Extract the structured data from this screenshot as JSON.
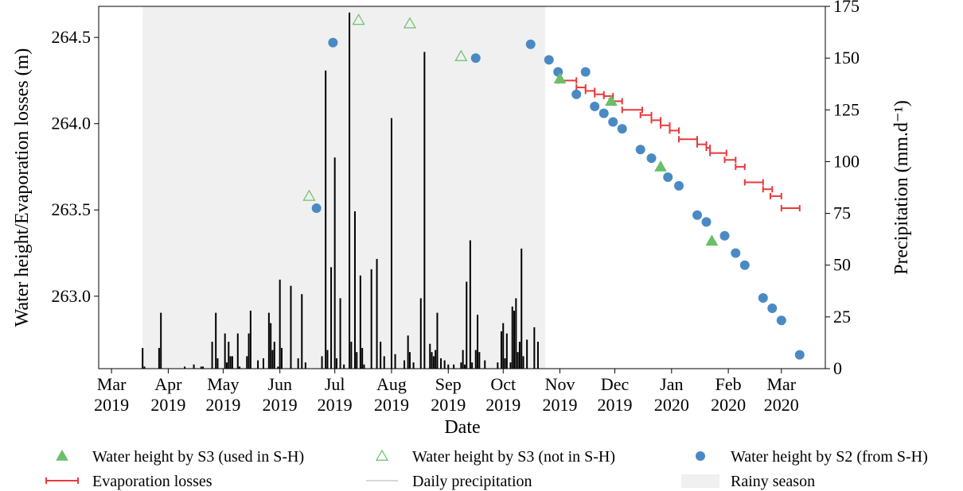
{
  "chart_data": {
    "type": "scatter",
    "xlabel": "Date",
    "ylabel_left": "Water height/Evaporation losses (m)",
    "ylabel_right": "Precipitation (mm.d⁻¹)",
    "x_range": [
      "2019-02-22",
      "2020-03-25"
    ],
    "ylim_left": [
      262.58,
      264.68
    ],
    "ylim_right": [
      0,
      175
    ],
    "grid": false,
    "legend_position": "bottom",
    "colors": {
      "s3_used": "#6abf69",
      "s3_not_used": "#6abf69",
      "s2": "#4a8ac4",
      "evaporation": "#e8393b",
      "precipitation": "#000000",
      "rainy_season": "#f0f0f0"
    },
    "x_ticks": [
      {
        "date": "2019-03-01",
        "label": "Mar\n2019"
      },
      {
        "date": "2019-04-01",
        "label": "Apr\n2019"
      },
      {
        "date": "2019-05-01",
        "label": "May\n2019"
      },
      {
        "date": "2019-06-01",
        "label": "Jun\n2019"
      },
      {
        "date": "2019-07-01",
        "label": "Jul\n2019"
      },
      {
        "date": "2019-08-01",
        "label": "Aug\n2019"
      },
      {
        "date": "2019-09-01",
        "label": "Sep\n2019"
      },
      {
        "date": "2019-10-01",
        "label": "Oct\n2019"
      },
      {
        "date": "2019-11-01",
        "label": "Nov\n2019"
      },
      {
        "date": "2019-12-01",
        "label": "Dec\n2019"
      },
      {
        "date": "2020-01-01",
        "label": "Jan\n2020"
      },
      {
        "date": "2020-02-01",
        "label": "Feb\n2020"
      },
      {
        "date": "2020-03-01",
        "label": "Mar\n2020"
      }
    ],
    "y_ticks_left": [
      {
        "value": 263.0,
        "label": "263.0"
      },
      {
        "value": 263.5,
        "label": "263.5"
      },
      {
        "value": 264.0,
        "label": "264.0"
      },
      {
        "value": 264.5,
        "label": "264.5"
      }
    ],
    "y_ticks_right": [
      {
        "value": 0,
        "label": "0"
      },
      {
        "value": 25,
        "label": "25"
      },
      {
        "value": 50,
        "label": "50"
      },
      {
        "value": 75,
        "label": "75"
      },
      {
        "value": 100,
        "label": "100"
      },
      {
        "value": 125,
        "label": "125"
      },
      {
        "value": 150,
        "label": "150"
      },
      {
        "value": 175,
        "label": "175"
      }
    ],
    "rainy_season": {
      "start": "2019-03-18",
      "end": "2019-10-24"
    },
    "series": [
      {
        "name": "Water height by S3 (used in S-H)",
        "kind": "triangle-filled",
        "points": [
          {
            "x": "2019-11-01",
            "y": 264.26
          },
          {
            "x": "2019-11-29",
            "y": 264.13
          },
          {
            "x": "2019-12-26",
            "y": 263.75
          },
          {
            "x": "2020-01-23",
            "y": 263.32
          }
        ]
      },
      {
        "name": "Water height by S3 (not in S-H)",
        "kind": "triangle-open",
        "points": [
          {
            "x": "2019-06-17",
            "y": 263.58
          },
          {
            "x": "2019-07-14",
            "y": 264.6
          },
          {
            "x": "2019-08-11",
            "y": 264.58
          },
          {
            "x": "2019-09-08",
            "y": 264.39
          }
        ]
      },
      {
        "name": "Water height by S2 (from S-H)",
        "kind": "circle",
        "points": [
          {
            "x": "2019-06-21",
            "y": 263.51
          },
          {
            "x": "2019-06-30",
            "y": 264.47
          },
          {
            "x": "2019-09-16",
            "y": 264.38
          },
          {
            "x": "2019-10-16",
            "y": 264.46
          },
          {
            "x": "2019-10-26",
            "y": 264.37
          },
          {
            "x": "2019-10-31",
            "y": 264.3
          },
          {
            "x": "2019-11-10",
            "y": 264.17
          },
          {
            "x": "2019-11-15",
            "y": 264.3
          },
          {
            "x": "2019-11-20",
            "y": 264.1
          },
          {
            "x": "2019-11-25",
            "y": 264.06
          },
          {
            "x": "2019-11-30",
            "y": 264.01
          },
          {
            "x": "2019-12-05",
            "y": 263.97
          },
          {
            "x": "2019-12-15",
            "y": 263.85
          },
          {
            "x": "2019-12-21",
            "y": 263.8
          },
          {
            "x": "2019-12-30",
            "y": 263.69
          },
          {
            "x": "2020-01-05",
            "y": 263.64
          },
          {
            "x": "2020-01-15",
            "y": 263.47
          },
          {
            "x": "2020-01-20",
            "y": 263.43
          },
          {
            "x": "2020-01-30",
            "y": 263.35
          },
          {
            "x": "2020-02-05",
            "y": 263.25
          },
          {
            "x": "2020-02-10",
            "y": 263.18
          },
          {
            "x": "2020-02-20",
            "y": 262.99
          },
          {
            "x": "2020-02-25",
            "y": 262.93
          },
          {
            "x": "2020-03-01",
            "y": 262.86
          },
          {
            "x": "2020-03-11",
            "y": 262.66
          }
        ]
      },
      {
        "name": "Evaporation losses",
        "kind": "horizontal-interval",
        "points": [
          {
            "start": "2019-10-31",
            "end": "2019-11-10",
            "y": 264.25
          },
          {
            "start": "2019-11-10",
            "end": "2019-11-15",
            "y": 264.21
          },
          {
            "start": "2019-11-15",
            "end": "2019-11-20",
            "y": 264.19
          },
          {
            "start": "2019-11-20",
            "end": "2019-11-25",
            "y": 264.17
          },
          {
            "start": "2019-11-25",
            "end": "2019-11-30",
            "y": 264.16
          },
          {
            "start": "2019-11-28",
            "end": "2019-12-05",
            "y": 264.13
          },
          {
            "start": "2019-12-05",
            "end": "2019-12-16",
            "y": 264.08
          },
          {
            "start": "2019-12-15",
            "end": "2019-12-21",
            "y": 264.05
          },
          {
            "start": "2019-12-21",
            "end": "2019-12-26",
            "y": 264.02
          },
          {
            "start": "2019-12-26",
            "end": "2019-12-31",
            "y": 263.99
          },
          {
            "start": "2019-12-31",
            "end": "2020-01-05",
            "y": 263.96
          },
          {
            "start": "2020-01-05",
            "end": "2020-01-15",
            "y": 263.91
          },
          {
            "start": "2020-01-15",
            "end": "2020-01-20",
            "y": 263.88
          },
          {
            "start": "2020-01-20",
            "end": "2020-01-22",
            "y": 263.86
          },
          {
            "start": "2020-01-22",
            "end": "2020-01-31",
            "y": 263.83
          },
          {
            "start": "2020-01-30",
            "end": "2020-02-05",
            "y": 263.79
          },
          {
            "start": "2020-02-05",
            "end": "2020-02-10",
            "y": 263.75
          },
          {
            "start": "2020-02-10",
            "end": "2020-02-20",
            "y": 263.66
          },
          {
            "start": "2020-02-20",
            "end": "2020-02-25",
            "y": 263.62
          },
          {
            "start": "2020-02-24",
            "end": "2020-03-01",
            "y": 263.58
          },
          {
            "start": "2020-03-01",
            "end": "2020-03-11",
            "y": 263.51
          }
        ]
      },
      {
        "name": "Daily precipitation",
        "kind": "bar",
        "points": [
          {
            "x": "2019-03-18",
            "y": 10
          },
          {
            "x": "2019-03-19",
            "y": 1
          },
          {
            "x": "2019-03-27",
            "y": 10
          },
          {
            "x": "2019-03-28",
            "y": 27
          },
          {
            "x": "2019-04-10",
            "y": 1
          },
          {
            "x": "2019-04-15",
            "y": 2
          },
          {
            "x": "2019-04-19",
            "y": 1
          },
          {
            "x": "2019-04-20",
            "y": 1
          },
          {
            "x": "2019-04-25",
            "y": 13
          },
          {
            "x": "2019-04-27",
            "y": 27
          },
          {
            "x": "2019-04-28",
            "y": 5
          },
          {
            "x": "2019-05-02",
            "y": 17
          },
          {
            "x": "2019-05-03",
            "y": 3
          },
          {
            "x": "2019-05-04",
            "y": 13
          },
          {
            "x": "2019-05-05",
            "y": 6
          },
          {
            "x": "2019-05-06",
            "y": 6
          },
          {
            "x": "2019-05-09",
            "y": 17
          },
          {
            "x": "2019-05-10",
            "y": 1
          },
          {
            "x": "2019-05-14",
            "y": 6
          },
          {
            "x": "2019-05-15",
            "y": 17
          },
          {
            "x": "2019-05-16",
            "y": 28
          },
          {
            "x": "2019-05-20",
            "y": 4
          },
          {
            "x": "2019-05-23",
            "y": 5
          },
          {
            "x": "2019-05-26",
            "y": 27
          },
          {
            "x": "2019-05-27",
            "y": 22
          },
          {
            "x": "2019-05-28",
            "y": 9
          },
          {
            "x": "2019-05-29",
            "y": 13
          },
          {
            "x": "2019-05-31",
            "y": 1
          },
          {
            "x": "2019-06-01",
            "y": 43
          },
          {
            "x": "2019-06-02",
            "y": 10
          },
          {
            "x": "2019-06-07",
            "y": 40
          },
          {
            "x": "2019-06-11",
            "y": 5
          },
          {
            "x": "2019-06-13",
            "y": 36
          },
          {
            "x": "2019-06-15",
            "y": 3
          },
          {
            "x": "2019-06-24",
            "y": 6
          },
          {
            "x": "2019-06-26",
            "y": 144
          },
          {
            "x": "2019-06-27",
            "y": 9
          },
          {
            "x": "2019-06-29",
            "y": 49
          },
          {
            "x": "2019-07-01",
            "y": 102
          },
          {
            "x": "2019-07-02",
            "y": 5
          },
          {
            "x": "2019-07-04",
            "y": 34
          },
          {
            "x": "2019-07-06",
            "y": 2
          },
          {
            "x": "2019-07-09",
            "y": 172
          },
          {
            "x": "2019-07-10",
            "y": 13
          },
          {
            "x": "2019-07-12",
            "y": 76
          },
          {
            "x": "2019-07-13",
            "y": 8
          },
          {
            "x": "2019-07-15",
            "y": 45
          },
          {
            "x": "2019-07-16",
            "y": 10
          },
          {
            "x": "2019-07-17",
            "y": 2
          },
          {
            "x": "2019-07-21",
            "y": 48
          },
          {
            "x": "2019-07-24",
            "y": 53
          },
          {
            "x": "2019-07-26",
            "y": 13
          },
          {
            "x": "2019-07-28",
            "y": 6
          },
          {
            "x": "2019-08-01",
            "y": 121
          },
          {
            "x": "2019-08-03",
            "y": 7
          },
          {
            "x": "2019-08-08",
            "y": 4
          },
          {
            "x": "2019-08-10",
            "y": 16
          },
          {
            "x": "2019-08-11",
            "y": 8
          },
          {
            "x": "2019-08-13",
            "y": 3
          },
          {
            "x": "2019-08-17",
            "y": 34
          },
          {
            "x": "2019-08-19",
            "y": 153
          },
          {
            "x": "2019-08-22",
            "y": 12
          },
          {
            "x": "2019-08-23",
            "y": 8
          },
          {
            "x": "2019-08-24",
            "y": 6
          },
          {
            "x": "2019-08-25",
            "y": 9
          },
          {
            "x": "2019-08-26",
            "y": 27
          },
          {
            "x": "2019-08-28",
            "y": 5
          },
          {
            "x": "2019-08-30",
            "y": 4
          },
          {
            "x": "2019-09-01",
            "y": 2
          },
          {
            "x": "2019-09-04",
            "y": 2
          },
          {
            "x": "2019-09-08",
            "y": 3
          },
          {
            "x": "2019-09-09",
            "y": 9
          },
          {
            "x": "2019-09-10",
            "y": 2
          },
          {
            "x": "2019-09-11",
            "y": 42
          },
          {
            "x": "2019-09-13",
            "y": 62
          },
          {
            "x": "2019-09-14",
            "y": 3
          },
          {
            "x": "2019-09-16",
            "y": 9
          },
          {
            "x": "2019-09-17",
            "y": 26
          },
          {
            "x": "2019-09-18",
            "y": 8
          },
          {
            "x": "2019-09-21",
            "y": 4
          },
          {
            "x": "2019-09-28",
            "y": 3
          },
          {
            "x": "2019-09-30",
            "y": 18
          },
          {
            "x": "2019-10-01",
            "y": 22
          },
          {
            "x": "2019-10-02",
            "y": 5
          },
          {
            "x": "2019-10-03",
            "y": 17
          },
          {
            "x": "2019-10-05",
            "y": 3
          },
          {
            "x": "2019-10-06",
            "y": 30
          },
          {
            "x": "2019-10-07",
            "y": 28
          },
          {
            "x": "2019-10-08",
            "y": 34
          },
          {
            "x": "2019-10-09",
            "y": 8
          },
          {
            "x": "2019-10-10",
            "y": 13
          },
          {
            "x": "2019-10-11",
            "y": 58
          },
          {
            "x": "2019-10-12",
            "y": 6
          },
          {
            "x": "2019-10-14",
            "y": 14
          },
          {
            "x": "2019-10-18",
            "y": 20
          },
          {
            "x": "2019-10-20",
            "y": 13
          }
        ]
      }
    ]
  },
  "legend": {
    "items": [
      {
        "key": "s3_used",
        "label": "Water height by S3 (used in S-H)"
      },
      {
        "key": "s3_not_used",
        "label": "Water height by S3 (not in S-H)"
      },
      {
        "key": "s2",
        "label": "Water height by S2 (from S-H)"
      },
      {
        "key": "evaporation",
        "label": "Evaporation losses"
      },
      {
        "key": "precipitation",
        "label": "Daily precipitation"
      },
      {
        "key": "rainy_season",
        "label": "Rainy season"
      }
    ]
  }
}
